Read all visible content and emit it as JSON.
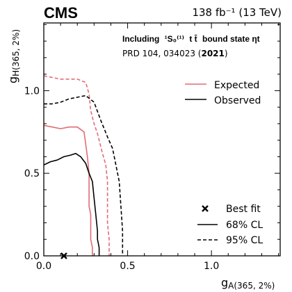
{
  "chart_data": {
    "type": "line",
    "experiment": "CMS",
    "lumi_label": "138 fb⁻¹ (13 TeV)",
    "annotation": "Including ¹S₀⁽¹⁾ t t̄ bound state ηt",
    "annotation_parts": {
      "prefix": "Including",
      "state": "¹S₀⁽¹⁾",
      "quarks": "t t̄",
      "suffix": "bound state ηt"
    },
    "reference": "PRD 104, 034023 (2021)",
    "reference_parts": {
      "prefix": "PRD 104, 034023 (",
      "year": "2021",
      "suffix": ")"
    },
    "xlabel": "g A(365, 2%)",
    "xlabel_parts": {
      "symbol": "g",
      "subscript": "A(365, 2%)"
    },
    "ylabel": "g H(365, 2%)",
    "ylabel_parts": {
      "symbol": "g",
      "subscript": "H(365, 2%)"
    },
    "xlim": [
      0.0,
      1.41
    ],
    "ylim": [
      0.0,
      1.41
    ],
    "xticks": [
      "0.0",
      "0.5",
      "1.0"
    ],
    "yticks": [
      "0.0",
      "0.5",
      "1.0"
    ],
    "grid": false,
    "legend_top": {
      "placement": "top-right",
      "entries": [
        {
          "label": "Expected",
          "color": "#e06c75",
          "style": "solid"
        },
        {
          "label": "Observed",
          "color": "#000000",
          "style": "solid"
        }
      ]
    },
    "legend_bottom": {
      "placement": "bottom-right",
      "entries": [
        {
          "label": "Best fit",
          "marker": "x"
        },
        {
          "label": "68% CL",
          "style": "solid"
        },
        {
          "label": "95% CL",
          "style": "dashed"
        }
      ]
    },
    "best_fit": {
      "x": 0.12,
      "y": 0.0
    },
    "series": [
      {
        "name": "Expected",
        "cl": "68% CL",
        "color": "#e06c75",
        "style": "solid",
        "x": [
          0.0,
          0.05,
          0.1,
          0.15,
          0.2,
          0.24,
          0.26,
          0.27,
          0.27,
          0.28,
          0.28,
          0.28,
          0.29,
          0.29
        ],
        "y": [
          0.79,
          0.78,
          0.77,
          0.78,
          0.78,
          0.75,
          0.6,
          0.5,
          0.3,
          0.25,
          0.15,
          0.1,
          0.05,
          0.0
        ]
      },
      {
        "name": "Expected",
        "cl": "95% CL",
        "color": "#e06c75",
        "style": "dashed",
        "x": [
          0.0,
          0.05,
          0.1,
          0.15,
          0.2,
          0.25,
          0.27,
          0.28,
          0.3,
          0.32,
          0.35,
          0.37,
          0.38,
          0.38,
          0.39,
          0.39
        ],
        "y": [
          1.09,
          1.08,
          1.07,
          1.07,
          1.07,
          1.05,
          0.98,
          0.88,
          0.8,
          0.74,
          0.62,
          0.55,
          0.45,
          0.2,
          0.1,
          0.0
        ]
      },
      {
        "name": "Observed",
        "cl": "68% CL",
        "color": "#000000",
        "style": "solid",
        "x": [
          0.0,
          0.04,
          0.08,
          0.12,
          0.16,
          0.19,
          0.22,
          0.25,
          0.27,
          0.29,
          0.3,
          0.31,
          0.32,
          0.32,
          0.33,
          0.33
        ],
        "y": [
          0.55,
          0.57,
          0.58,
          0.6,
          0.61,
          0.62,
          0.6,
          0.56,
          0.5,
          0.45,
          0.35,
          0.25,
          0.15,
          0.1,
          0.05,
          0.0
        ]
      },
      {
        "name": "Observed",
        "cl": "95% CL",
        "color": "#000000",
        "style": "dashed",
        "x": [
          0.0,
          0.05,
          0.1,
          0.15,
          0.2,
          0.25,
          0.3,
          0.34,
          0.38,
          0.41,
          0.43,
          0.45,
          0.46,
          0.47,
          0.47
        ],
        "y": [
          0.92,
          0.92,
          0.93,
          0.95,
          0.96,
          0.97,
          0.93,
          0.82,
          0.72,
          0.65,
          0.55,
          0.45,
          0.3,
          0.15,
          0.0
        ]
      }
    ]
  }
}
